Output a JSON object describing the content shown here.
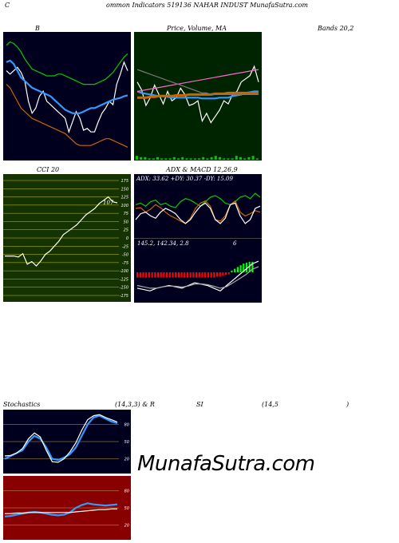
{
  "header": {
    "left": "C",
    "center": "ommon  Indicators 519136  NAHAR INDUST MunafaSutra.com"
  },
  "titles": {
    "bands_left": "B",
    "price": "Price,  Volume,  MA",
    "bands_right": "Bands 20,2",
    "cci": "CCI 20",
    "adx_macd": "ADX   & MACD 12,26,9",
    "stoch_left": "Stochastics",
    "stoch_params": "(14,3,3) & R",
    "rsi": "SI",
    "rsi_params": "(14,5",
    "rsi_close": ")"
  },
  "adx_text": "ADX: 33.62  +DY: 30.37 -DY: 15.09",
  "macd_text": "145.2,  142.34,  2.8",
  "macd_extra": "6",
  "cci_value": "107",
  "watermark": "MunafaSutra.com",
  "colors": {
    "navy": "#00001e",
    "green_panel": "#002300",
    "olive_panel": "#153300",
    "red_panel": "#880000",
    "white": "#ffffff",
    "blue": "#3399ff",
    "orange": "#cc6600",
    "green": "#00cc00",
    "pink": "#ff66cc"
  },
  "chart_data": [
    {
      "type": "line",
      "panel": "bollinger",
      "series": [
        {
          "values": [
            80,
            78,
            80,
            82,
            79,
            74,
            62,
            55,
            58,
            65,
            68,
            62,
            60,
            58,
            56,
            54,
            52,
            44,
            50,
            56,
            52,
            45,
            46,
            44,
            44,
            50,
            55,
            58,
            62,
            60,
            72,
            78,
            85,
            80
          ],
          "color": "#ffffff"
        },
        {
          "values": [
            85,
            86,
            84,
            80,
            76,
            74,
            72,
            70,
            69,
            68,
            67,
            66,
            65,
            63,
            61,
            59,
            57,
            56,
            55,
            55,
            55,
            56,
            57,
            58,
            58,
            59,
            60,
            61,
            62,
            63,
            63.5,
            64,
            65,
            65.5
          ],
          "color": "#3399ff"
        },
        {
          "values": [
            95,
            97,
            96,
            94,
            91,
            87,
            84,
            81,
            80,
            79,
            78,
            77,
            77,
            77,
            78,
            78,
            77,
            76,
            75,
            74,
            73,
            72,
            72,
            72,
            72,
            73,
            74,
            75,
            77,
            79,
            82,
            85,
            88,
            90
          ],
          "color": "#00cc00"
        },
        {
          "values": [
            72,
            70,
            66,
            62,
            58,
            56,
            54,
            52,
            51,
            50,
            49,
            48,
            47,
            46,
            45,
            44,
            43,
            41,
            39,
            37,
            36,
            36,
            36,
            36,
            37,
            38,
            39,
            40,
            40,
            39,
            38,
            37,
            36,
            35
          ],
          "color": "#cc6600"
        }
      ]
    },
    {
      "type": "line",
      "panel": "price-volume-ma",
      "series": [
        {
          "values": [
            70,
            65,
            55,
            60,
            68,
            62,
            56,
            64,
            58,
            60,
            66,
            62,
            55,
            56,
            58,
            45,
            50,
            44,
            48,
            52,
            58,
            56,
            62,
            64,
            70,
            72,
            74,
            80,
            70
          ],
          "color": "#ffffff"
        },
        {
          "values": [
            64,
            63,
            62.5,
            62,
            61.5,
            61,
            61,
            60.5,
            60,
            60,
            60,
            60,
            60,
            60,
            60,
            59.5,
            59.5,
            59.5,
            59.5,
            60,
            60,
            60,
            61,
            61.5,
            62,
            63,
            63.5,
            64,
            64
          ],
          "color": "#3399ff"
        },
        {
          "values": [
            60,
            60,
            60,
            60.5,
            60.5,
            61,
            61,
            61,
            61,
            61.5,
            61.5,
            61.5,
            62,
            62,
            62,
            62,
            62,
            62,
            62.5,
            62.5,
            62.5,
            63,
            63,
            63,
            63,
            63,
            63,
            63,
            63
          ],
          "color": "#cc6600"
        },
        {
          "values": [
            64,
            64.5,
            65,
            65.5,
            66,
            66.5,
            67,
            67.5,
            68,
            68.5,
            69,
            69.5,
            70,
            70.5,
            71,
            71.5,
            72,
            72.5,
            73,
            73.5,
            74,
            74.5,
            75,
            75.5,
            76,
            76.5,
            77,
            77.5,
            78
          ],
          "color": "#ff66cc"
        },
        {
          "values": [
            78,
            77,
            76,
            75,
            74,
            73,
            72,
            71,
            70,
            69,
            68,
            67,
            66,
            65,
            64,
            63,
            63,
            62,
            62,
            62,
            62,
            62,
            62,
            62,
            62,
            62,
            62,
            62,
            62
          ],
          "color": "#777777"
        }
      ],
      "volume": [
        3,
        2,
        2,
        1,
        1,
        2,
        1,
        1,
        1,
        2,
        1,
        2,
        1,
        1,
        1,
        1,
        2,
        1,
        2,
        3,
        2,
        1,
        1,
        1,
        3,
        2,
        1,
        2,
        3,
        1
      ]
    },
    {
      "type": "line",
      "panel": "cci",
      "ylim": [
        -175,
        175
      ],
      "yticks": [
        175,
        150,
        125,
        100,
        75,
        50,
        25,
        0,
        -25,
        -50,
        -75,
        -100,
        -125,
        -150,
        -175
      ],
      "series": [
        {
          "values": [
            -55,
            -55,
            -55,
            -58,
            -48,
            -80,
            -72,
            -85,
            -70,
            -50,
            -40,
            -25,
            -10,
            10,
            20,
            30,
            40,
            55,
            70,
            80,
            90,
            105,
            115,
            125,
            110,
            107
          ],
          "color": "#ffffff"
        }
      ]
    },
    {
      "type": "line",
      "panel": "adx",
      "series": [
        {
          "values": [
            40,
            42,
            38,
            44,
            46,
            40,
            42,
            38,
            36,
            44,
            48,
            46,
            42,
            38,
            44,
            50,
            52,
            48,
            42,
            40,
            44,
            50,
            52,
            48,
            55,
            50
          ],
          "color": "#00cc00"
        },
        {
          "values": [
            35,
            36,
            30,
            34,
            40,
            36,
            30,
            25,
            22,
            18,
            15,
            22,
            35,
            42,
            45,
            38,
            20,
            18,
            25,
            40,
            45,
            30,
            25,
            28,
            32,
            30
          ],
          "color": "#cc6600"
        },
        {
          "values": [
            20,
            28,
            30,
            25,
            22,
            30,
            35,
            32,
            28,
            20,
            15,
            20,
            30,
            38,
            42,
            35,
            20,
            15,
            22,
            40,
            42,
            25,
            15,
            20,
            35,
            38
          ],
          "color": "#ffffff"
        }
      ]
    },
    {
      "type": "bar",
      "panel": "macd",
      "histogram": [
        -3,
        -3,
        -3,
        -3,
        -3,
        -3,
        -3,
        -3,
        -3,
        -3,
        -3,
        -3,
        -3,
        -3,
        -3,
        -3,
        -3,
        -3,
        -3,
        -3,
        -3,
        -3,
        -3,
        -3,
        -3,
        -3,
        -3,
        -2.5,
        -2.5,
        -2,
        -1.5,
        -1,
        1,
        2,
        3,
        4,
        5,
        5.5,
        6,
        6
      ],
      "series": [
        {
          "values": [
            -5,
            -5.5,
            -6,
            -5,
            -4.5,
            -4,
            -4.5,
            -5,
            -4,
            -3,
            -3.5,
            -4,
            -5,
            -6,
            -4,
            -2,
            0,
            2,
            4,
            5
          ],
          "color": "#ffffff"
        },
        {
          "values": [
            -4,
            -4.5,
            -5,
            -5,
            -4.5,
            -4.2,
            -4.3,
            -4.6,
            -4.2,
            -3.5,
            -3.4,
            -3.7,
            -4.3,
            -5,
            -4.4,
            -3,
            -1.5,
            0,
            2,
            3
          ],
          "color": "#aaaaaa"
        }
      ]
    },
    {
      "type": "line",
      "panel": "stochastics",
      "yticks": [
        80,
        50,
        20
      ],
      "series": [
        {
          "values": [
            20,
            25,
            30,
            35,
            50,
            60,
            55,
            40,
            20,
            18,
            22,
            28,
            40,
            60,
            80,
            92,
            95,
            90,
            85,
            82
          ],
          "color": "#3399ff"
        },
        {
          "values": [
            25,
            26,
            30,
            38,
            55,
            65,
            58,
            35,
            15,
            14,
            20,
            32,
            48,
            70,
            88,
            95,
            97,
            92,
            88,
            84
          ],
          "color": "#ffffff"
        }
      ]
    },
    {
      "type": "line",
      "panel": "rsi",
      "yticks": [
        80,
        50,
        20
      ],
      "series": [
        {
          "values": [
            35,
            36,
            38,
            40,
            42,
            43,
            42,
            40,
            38,
            37,
            38,
            42,
            50,
            55,
            58,
            56,
            55,
            54,
            55,
            56
          ],
          "color": "#3399ff"
        },
        {
          "values": [
            40,
            40,
            41,
            41,
            42,
            42,
            42,
            42,
            42,
            42,
            42,
            42,
            43,
            44,
            45,
            46,
            47,
            47,
            48,
            48
          ],
          "color": "#ffffff"
        }
      ]
    }
  ]
}
